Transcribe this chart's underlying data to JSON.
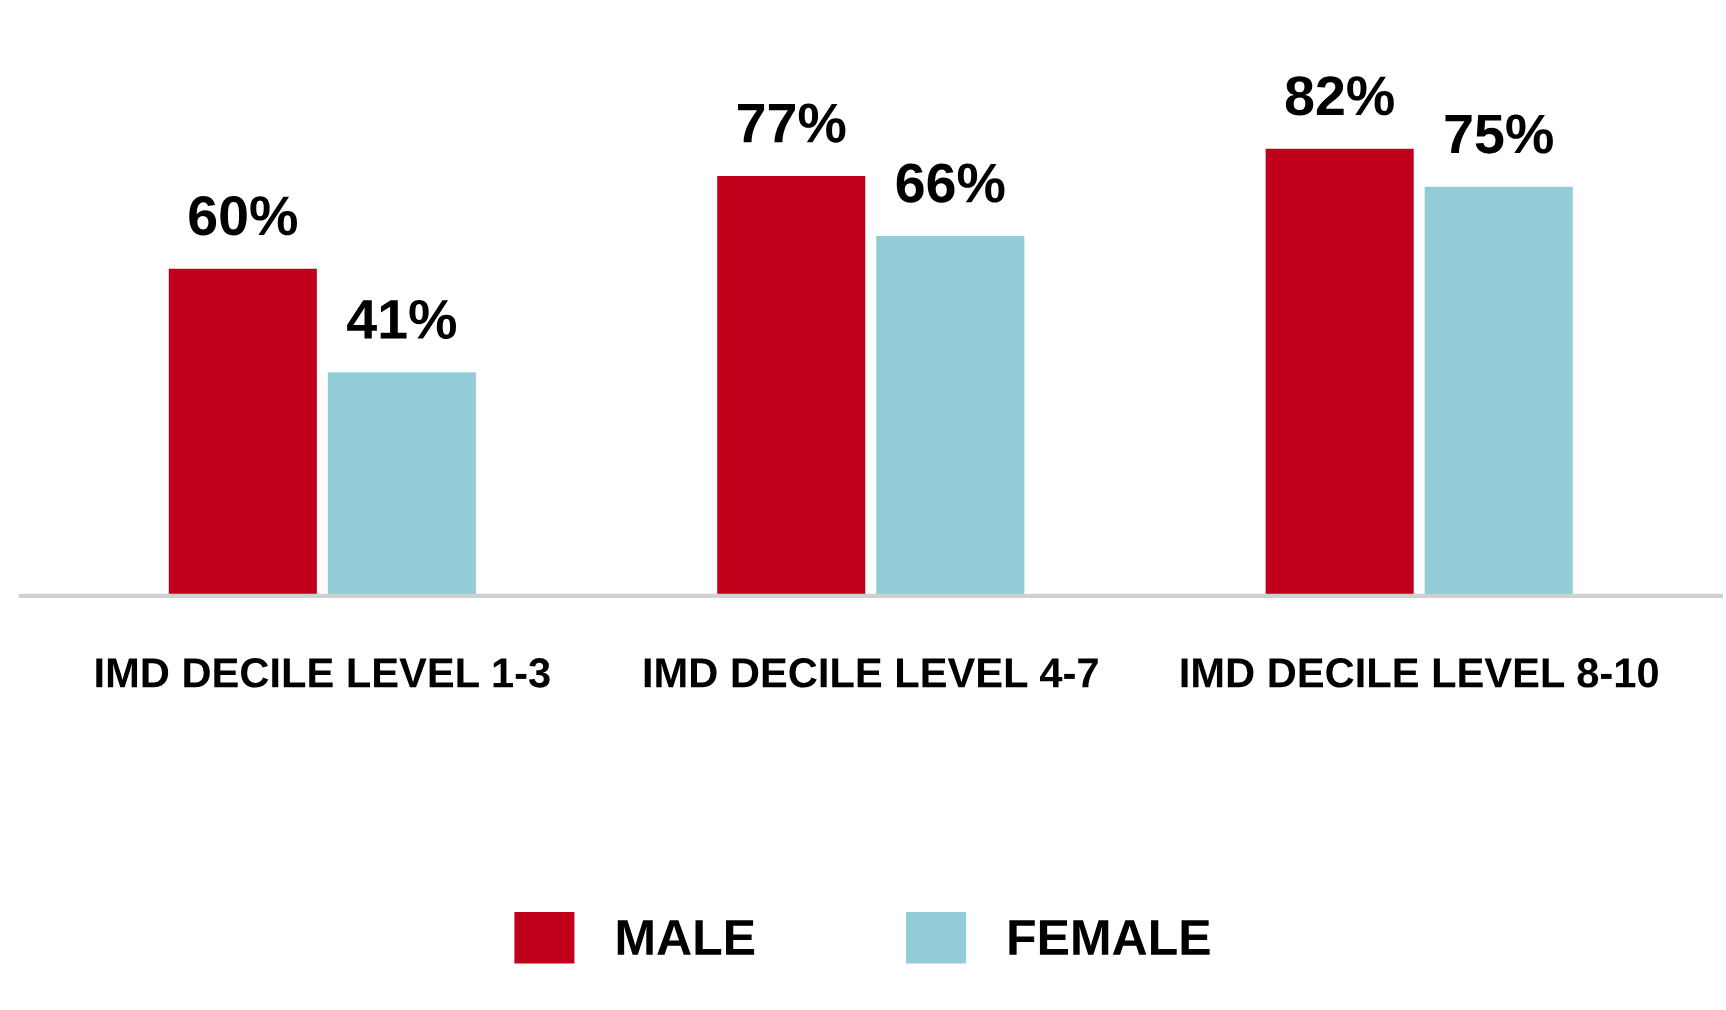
{
  "chart_data": {
    "type": "bar",
    "categories": [
      "IMD DECILE LEVEL 1-3",
      "IMD DECILE LEVEL 4-7",
      "IMD DECILE LEVEL 8-10"
    ],
    "series": [
      {
        "name": "MALE",
        "color": "#c0001a",
        "values": [
          60,
          77,
          82
        ],
        "value_labels": [
          "60%",
          "77%",
          "82%"
        ]
      },
      {
        "name": "FEMALE",
        "color": "#92ccd6",
        "values": [
          41,
          66,
          75
        ],
        "value_labels": [
          "41%",
          "66%",
          "75%"
        ]
      }
    ],
    "grid": false,
    "legend": "bottom"
  }
}
